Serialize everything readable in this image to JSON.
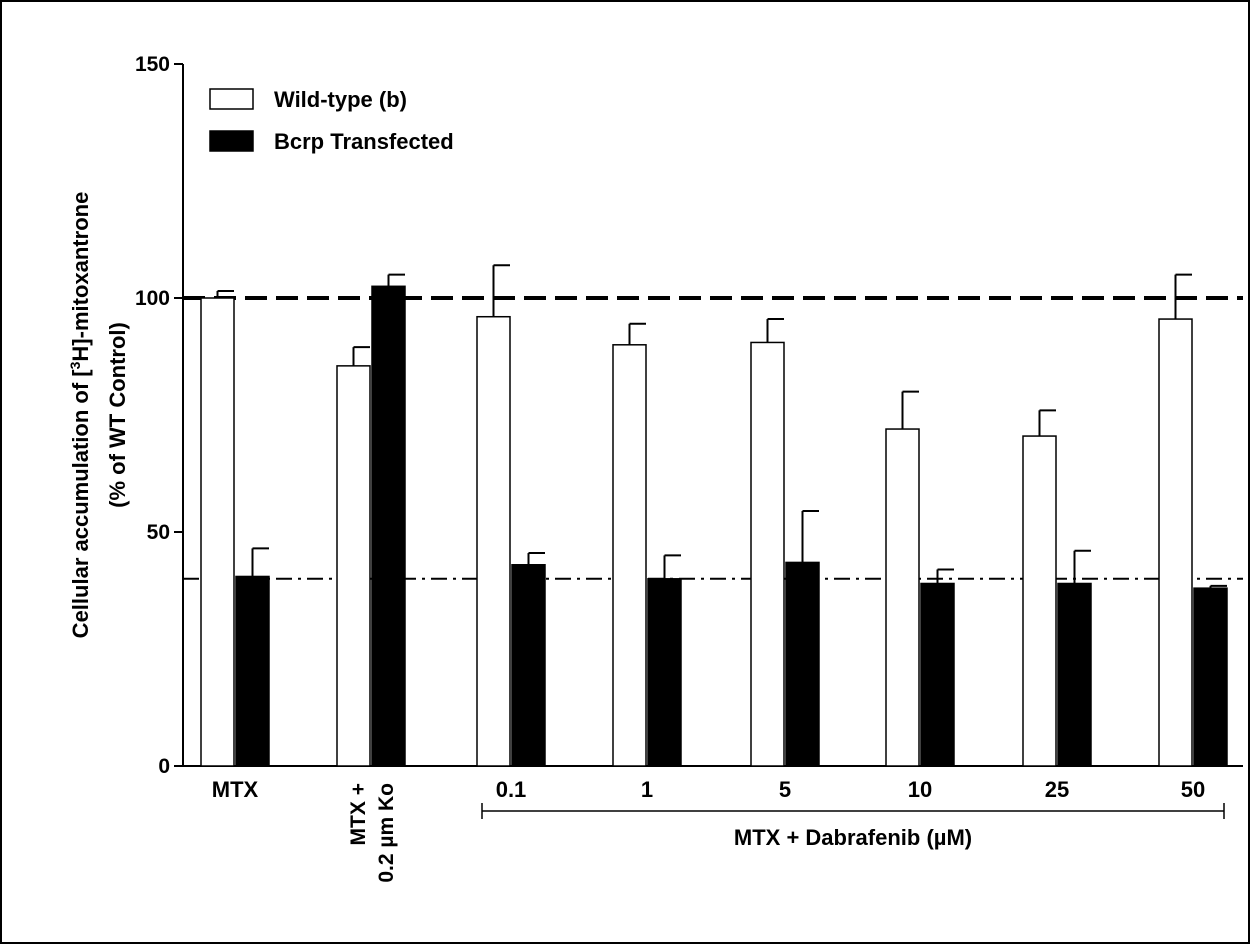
{
  "chart_data": {
    "type": "bar",
    "ylabel_line1_prefix": "Cellular accumulation of [",
    "ylabel_sup": "3",
    "ylabel_line1_suffix": "H]-mitoxantrone",
    "ylabel_line2": "(% of WT Control)",
    "ylim": [
      0,
      150
    ],
    "yticks": [
      "0",
      "50",
      "100",
      "150"
    ],
    "categories": [
      "MTX",
      "MTX + 0.2 µm Ko",
      "0.1",
      "1",
      "5",
      "10",
      "25",
      "50"
    ],
    "category_label_lines": {
      "MTX + 0.2 µm Ko": [
        "MTX +",
        "0.2 µm Ko"
      ]
    },
    "group_label": "MTX + Dabrafenib (µM)",
    "series": [
      {
        "name": "Wild-type (b)",
        "color": "#ffffff",
        "values": [
          100,
          85.5,
          96,
          90,
          90.5,
          72,
          70.5,
          95.5
        ],
        "errors": [
          1.5,
          4,
          11,
          4.5,
          5,
          8,
          5.5,
          9.5
        ]
      },
      {
        "name": "Bcrp Transfected",
        "color": "#000000",
        "values": [
          40.5,
          102.5,
          43,
          40,
          43.5,
          39,
          39,
          38
        ],
        "errors": [
          6,
          2.5,
          2.5,
          5,
          11,
          3,
          7,
          0.5
        ]
      }
    ],
    "reference_lines": [
      {
        "value": 100,
        "style": "dashed"
      },
      {
        "value": 40,
        "style": "dash-dot"
      }
    ],
    "legend_placement": "top-left",
    "grid": false
  }
}
